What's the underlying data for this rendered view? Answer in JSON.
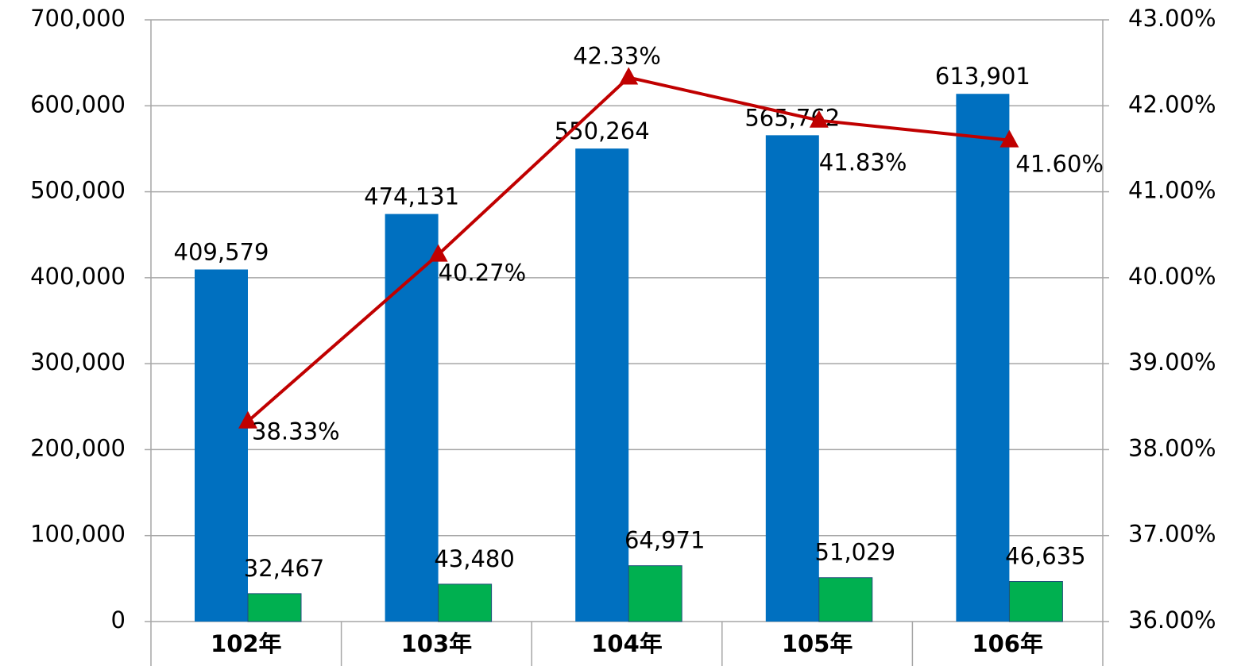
{
  "chart_data": {
    "type": "bar",
    "categories": [
      "102年",
      "103年",
      "104年",
      "105年",
      "106年"
    ],
    "series": [
      {
        "color": "#0070c0",
        "values": [
          409579,
          474131,
          550264,
          565762,
          613901
        ],
        "value_labels": [
          "409,579",
          "474,131",
          "550,264",
          "565,762",
          "613,901"
        ]
      },
      {
        "color": "#00b050",
        "values": [
          32467,
          43480,
          64971,
          51029,
          46635
        ],
        "value_labels": [
          "32,467",
          "43,480",
          "64,971",
          "51,029",
          "46,635"
        ]
      },
      {
        "type": "line",
        "axis": "y2",
        "color": "#c00000",
        "values": [
          38.33,
          40.27,
          42.33,
          41.83,
          41.6
        ],
        "value_labels": [
          "38.33%",
          "40.27%",
          "42.33%",
          "41.83%",
          "41.60%"
        ]
      }
    ],
    "ylim": [
      0,
      700000
    ],
    "yticks": [
      0,
      {
        "value": 100000,
        "label": "100,000"
      },
      {
        "value": 200000,
        "label": "200,000"
      },
      {
        "value": 300000,
        "label": "300,000"
      },
      {
        "value": 400000,
        "label": "400,000"
      },
      {
        "value": 500000,
        "label": "500,000"
      },
      {
        "value": 600000,
        "label": "600,000"
      },
      {
        "value": 700000,
        "label": "700,000"
      }
    ],
    "y2lim": [
      36,
      43
    ],
    "y2ticks": [
      {
        "value": 36,
        "label": "36.00%"
      },
      {
        "value": 37,
        "label": "37.00%"
      },
      {
        "value": 38,
        "label": "38.00%"
      },
      {
        "value": 39,
        "label": "39.00%"
      },
      {
        "value": 40,
        "label": "40.00%"
      },
      {
        "value": 41,
        "label": "41.00%"
      },
      {
        "value": 42,
        "label": "42.00%"
      },
      {
        "value": 43,
        "label": "43.00%"
      }
    ],
    "grid": true
  }
}
